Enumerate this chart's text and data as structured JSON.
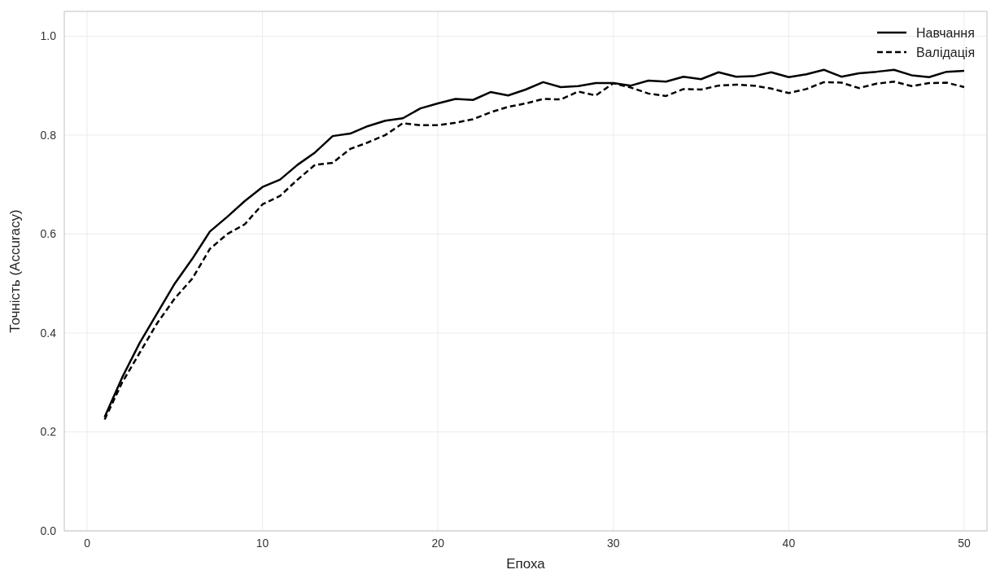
{
  "chart_data": {
    "type": "line",
    "xlabel": "Епоха",
    "ylabel": "Точність (Accuracy)",
    "x": [
      1,
      2,
      3,
      4,
      5,
      6,
      7,
      8,
      9,
      10,
      11,
      12,
      13,
      14,
      15,
      16,
      17,
      18,
      19,
      20,
      21,
      22,
      23,
      24,
      25,
      26,
      27,
      28,
      29,
      30,
      31,
      32,
      33,
      34,
      35,
      36,
      37,
      38,
      39,
      40,
      41,
      42,
      43,
      44,
      45,
      46,
      47,
      48,
      49,
      50
    ],
    "series": [
      {
        "name": "Навчання",
        "color": "#000000",
        "line_style": "solid",
        "values": [
          0.23,
          0.31,
          0.38,
          0.44,
          0.5,
          0.55,
          0.605,
          0.635,
          0.667,
          0.695,
          0.71,
          0.74,
          0.765,
          0.798,
          0.803,
          0.818,
          0.829,
          0.834,
          0.854,
          0.864,
          0.873,
          0.871,
          0.887,
          0.88,
          0.892,
          0.907,
          0.897,
          0.899,
          0.905,
          0.905,
          0.9,
          0.91,
          0.908,
          0.918,
          0.913,
          0.927,
          0.918,
          0.919,
          0.927,
          0.917,
          0.923,
          0.932,
          0.918,
          0.925,
          0.928,
          0.932,
          0.921,
          0.917,
          0.928,
          0.93
        ]
      },
      {
        "name": "Валідація",
        "color": "#000000",
        "line_style": "dashed",
        "values": [
          0.225,
          0.3,
          0.36,
          0.42,
          0.47,
          0.51,
          0.57,
          0.6,
          0.62,
          0.66,
          0.677,
          0.71,
          0.74,
          0.744,
          0.772,
          0.785,
          0.8,
          0.824,
          0.82,
          0.82,
          0.825,
          0.832,
          0.846,
          0.857,
          0.864,
          0.873,
          0.872,
          0.888,
          0.88,
          0.905,
          0.896,
          0.884,
          0.879,
          0.893,
          0.892,
          0.9,
          0.902,
          0.9,
          0.894,
          0.885,
          0.893,
          0.907,
          0.906,
          0.895,
          0.904,
          0.908,
          0.899,
          0.905,
          0.906,
          0.897
        ]
      }
    ],
    "xlim": [
      -1.3,
      51.3
    ],
    "xticks": [
      0,
      10,
      20,
      30,
      40,
      50
    ],
    "ylim": [
      0,
      1.05
    ],
    "yticks": [
      {
        "value": 0,
        "label": "0.0"
      },
      {
        "value": 0.2,
        "label": "0.2"
      },
      {
        "value": 0.4,
        "label": "0.4"
      },
      {
        "value": 0.6,
        "label": "0.6"
      },
      {
        "value": 0.8,
        "label": "0.8"
      },
      {
        "value": 1,
        "label": "1.0"
      }
    ],
    "grid": true,
    "legend": "top right",
    "marker": "none"
  }
}
